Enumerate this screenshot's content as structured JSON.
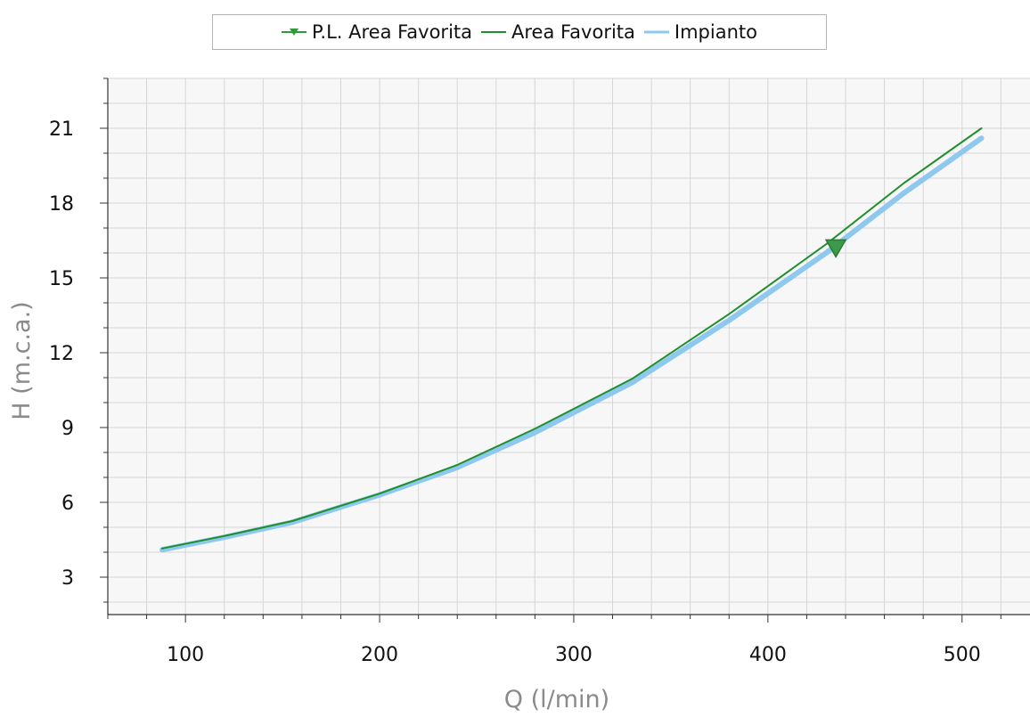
{
  "legend": {
    "items": [
      {
        "label": "P.L. Area Favorita",
        "color": "#2e9a3a",
        "marker": "triangle-down"
      },
      {
        "label": "Area Favorita",
        "color": "#1f8f2c"
      },
      {
        "label": "Impianto",
        "color": "#8ec8ef"
      }
    ]
  },
  "chart_data": {
    "type": "line",
    "xlabel": "Q (l/min)",
    "ylabel": "H (m.c.a.)",
    "xlim": [
      60,
      535
    ],
    "ylim": [
      1.5,
      23
    ],
    "x_ticks": [
      100,
      200,
      300,
      400,
      500
    ],
    "y_ticks": [
      3,
      6,
      9,
      12,
      15,
      18,
      21
    ],
    "grid": true,
    "legend_position": "top",
    "series": [
      {
        "name": "Impianto",
        "color": "#8ec8ef",
        "x": [
          88,
          120,
          155,
          200,
          240,
          280,
          330,
          380,
          430,
          470,
          510
        ],
        "y": [
          4.1,
          4.6,
          5.2,
          6.3,
          7.4,
          8.8,
          10.8,
          13.3,
          16.0,
          18.4,
          20.6
        ]
      },
      {
        "name": "Area Favorita",
        "color": "#1f8f2c",
        "x": [
          88,
          120,
          155,
          200,
          240,
          280,
          330,
          380,
          430,
          470,
          510
        ],
        "y": [
          4.15,
          4.65,
          5.25,
          6.35,
          7.5,
          8.95,
          10.95,
          13.55,
          16.35,
          18.8,
          21.0
        ]
      },
      {
        "name": "P.L. Area Favorita",
        "color": "#2e9a3a",
        "marker": "triangle-down",
        "x": [
          435
        ],
        "y": [
          16.2
        ]
      }
    ]
  }
}
